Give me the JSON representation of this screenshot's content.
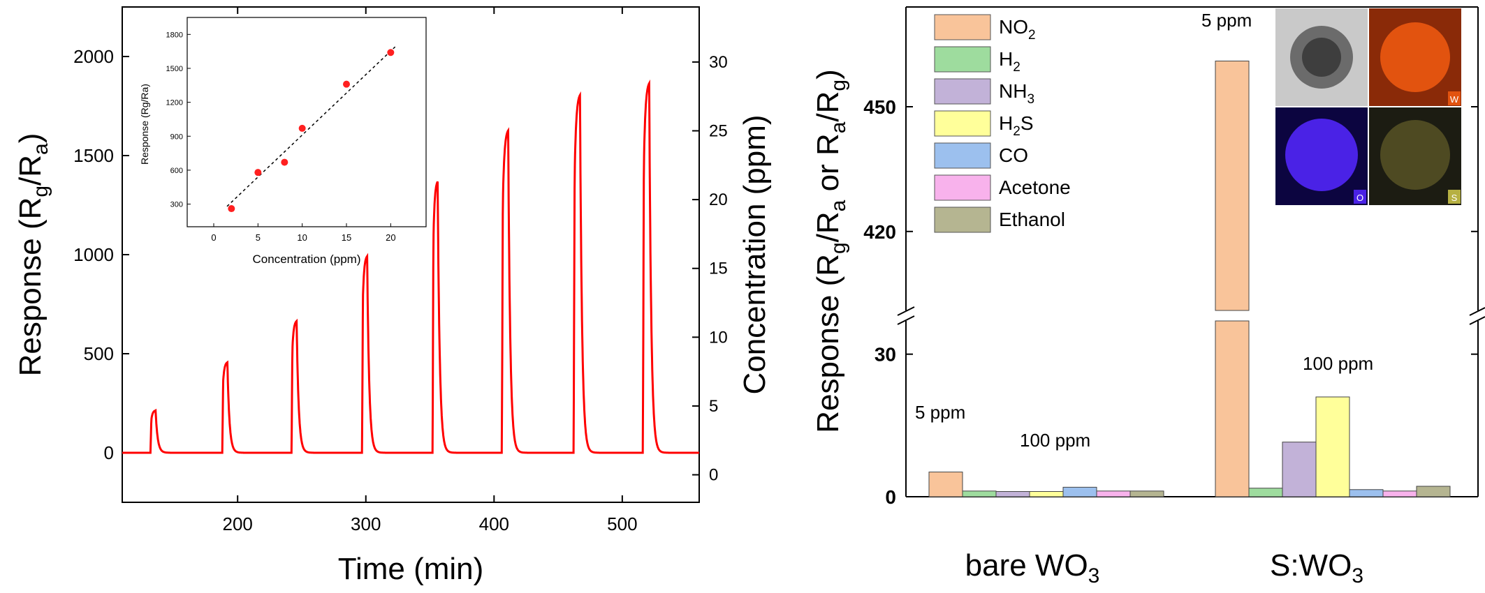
{
  "chart_data": [
    {
      "type": "line",
      "ylabel": "Response (R_g/R_a)",
      "ylabel_main": "Response (R",
      "ylabel_sub1": "g",
      "ylabel_mid": "/R",
      "ylabel_sub2": "a",
      "ylabel_end": ")",
      "xlabel": "Time (min)",
      "y2label": "Concentration (ppm)",
      "xlim": [
        110,
        560
      ],
      "ylim": [
        -250,
        2250
      ],
      "y2lim": [
        -2,
        34
      ],
      "xticks": [
        200,
        300,
        400,
        500
      ],
      "yticks": [
        0,
        500,
        1000,
        1500,
        2000
      ],
      "y2ticks": [
        0,
        5,
        10,
        15,
        20,
        25,
        30
      ],
      "line_color": "#ff0000",
      "peaks": [
        {
          "t_on": 132,
          "t_off": 136,
          "peak": 215,
          "conc_ppm": 2
        },
        {
          "t_on": 188,
          "t_off": 192,
          "peak": 460,
          "conc_ppm": 5
        },
        {
          "t_on": 242,
          "t_off": 246,
          "peak": 670,
          "conc_ppm": 8
        },
        {
          "t_on": 297,
          "t_off": 301,
          "peak": 1000,
          "conc_ppm": 10
        },
        {
          "t_on": 352,
          "t_off": 356,
          "peak": 1380,
          "conc_ppm": 15
        },
        {
          "t_on": 406,
          "t_off": 411,
          "peak": 1640,
          "conc_ppm": 20
        },
        {
          "t_on": 462,
          "t_off": 467,
          "peak": 1820,
          "conc_ppm": 25
        },
        {
          "t_on": 516,
          "t_off": 521,
          "peak": 1880,
          "conc_ppm": 30
        }
      ],
      "inset": {
        "type": "scatter",
        "xlabel": "Concentration (ppm)",
        "ylabel": "Response (R_g/R_a)",
        "ylabel_text": "Response (Rg/Ra)",
        "xlim": [
          -3,
          24
        ],
        "ylim": [
          100,
          1950
        ],
        "xticks": [
          0,
          5,
          10,
          15,
          20
        ],
        "yticks": [
          300,
          600,
          900,
          1200,
          1500,
          1800
        ],
        "points": [
          {
            "x": 2,
            "y": 260
          },
          {
            "x": 5,
            "y": 580
          },
          {
            "x": 8,
            "y": 670
          },
          {
            "x": 10,
            "y": 970
          },
          {
            "x": 15,
            "y": 1360
          },
          {
            "x": 20,
            "y": 1640
          }
        ],
        "fit_line": [
          {
            "x": 1.5,
            "y": 280
          },
          {
            "x": 20.5,
            "y": 1690
          }
        ],
        "point_color": "#ff2020"
      }
    },
    {
      "type": "bar",
      "ylabel_text": "Response (Rg/Ra or Ra/Rg)",
      "groups": [
        {
          "label": "bare WO",
          "label_sub": "3"
        },
        {
          "label": "S:WO",
          "label_sub": "3"
        }
      ],
      "series": [
        {
          "name": "NO",
          "name_sub": "2",
          "color": "#f9c49a",
          "values": [
            5.2,
            461
          ]
        },
        {
          "name": "H",
          "name_sub": "2",
          "color": "#9edc9e",
          "values": [
            1.2,
            1.8
          ]
        },
        {
          "name": "NH",
          "name_sub": "3",
          "color": "#c2b2d8",
          "values": [
            1.1,
            11.5
          ]
        },
        {
          "name": "H",
          "name_sub": "2",
          "name_end": "S",
          "color": "#ffff9a",
          "values": [
            1.1,
            21
          ]
        },
        {
          "name": "CO",
          "name_sub": "",
          "color": "#9cc0ee",
          "values": [
            2.0,
            1.5
          ]
        },
        {
          "name": "Acetone",
          "name_sub": "",
          "color": "#f8b2ec",
          "values": [
            1.2,
            1.2
          ]
        },
        {
          "name": "Ethanol",
          "name_sub": "",
          "color": "#b5b591",
          "values": [
            1.2,
            2.2
          ]
        }
      ],
      "lower_ylim": [
        0,
        37
      ],
      "upper_ylim": [
        401,
        474
      ],
      "lower_yticks": [
        0,
        30
      ],
      "upper_yticks": [
        420,
        450
      ],
      "annotations": {
        "bare_no2": "5 ppm",
        "bare_others": "100 ppm",
        "s_no2": "5 ppm",
        "s_others": "100 ppm"
      },
      "eds_labels": [
        "W",
        "O",
        "S"
      ]
    }
  ]
}
